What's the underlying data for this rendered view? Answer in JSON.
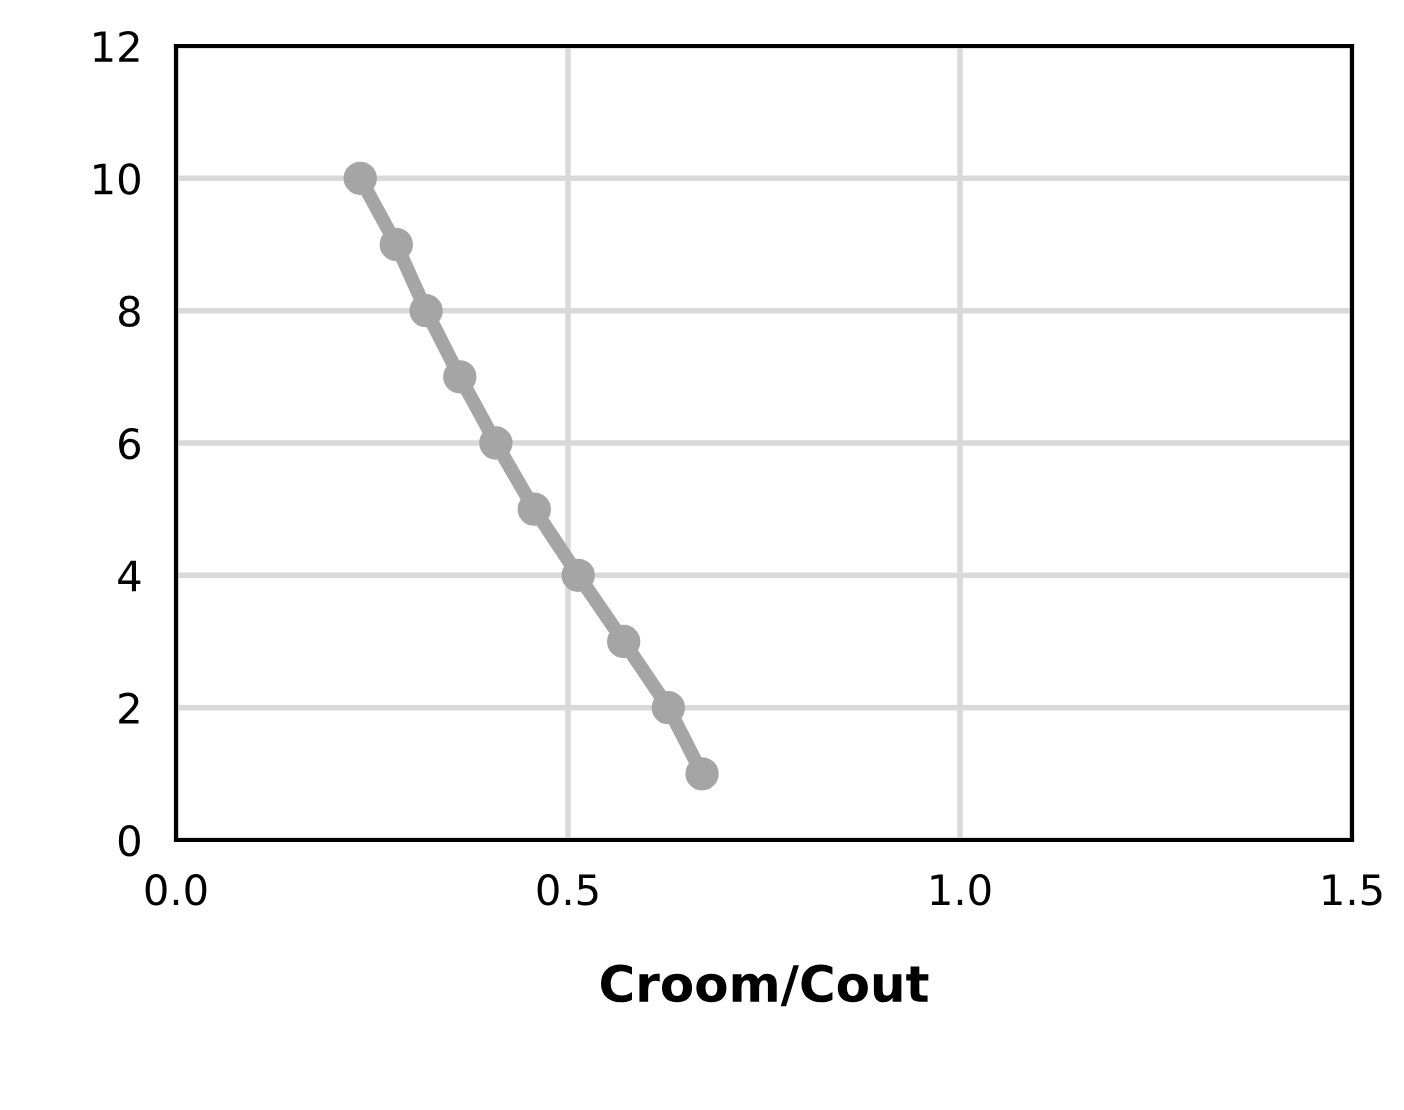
{
  "chart_data": {
    "type": "line",
    "xlabel": "Croom/Cout",
    "series": [
      {
        "color": "#a5a5a5",
        "x": [
          0.235,
          0.281,
          0.319,
          0.362,
          0.408,
          0.457,
          0.513,
          0.571,
          0.628,
          0.671
        ],
        "values": [
          10,
          9,
          8,
          7,
          6,
          5,
          4,
          3,
          2,
          1
        ]
      }
    ],
    "xlim": [
      0,
      1.5
    ],
    "xticks": [
      {
        "value": 0,
        "label": "0.0"
      },
      {
        "value": 0.5,
        "label": "0.5"
      },
      {
        "value": 1,
        "label": "1.0"
      },
      {
        "value": 1.5,
        "label": "1.5"
      }
    ],
    "ylim": [
      0,
      12
    ],
    "yticks": [
      0,
      2,
      4,
      6,
      8,
      10,
      12
    ],
    "grid": true,
    "marker": "circle",
    "line_style": "solid"
  }
}
